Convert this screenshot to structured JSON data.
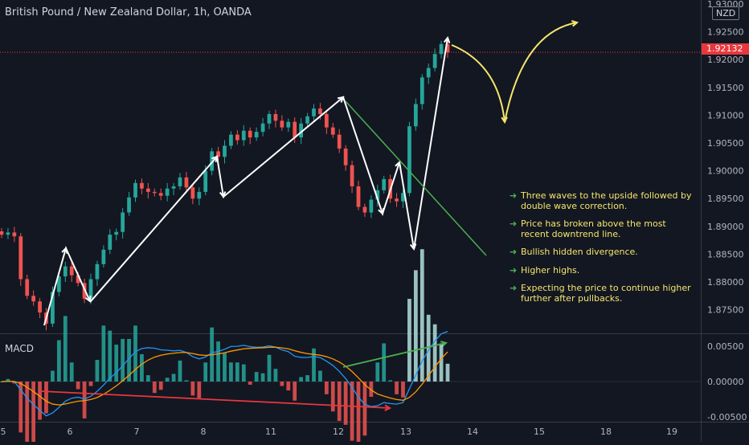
{
  "chart_data": [
    {
      "type": "line",
      "panel": "price",
      "title": "British Pound / New Zealand Dollar, 1h, OANDA",
      "currency": "NZD",
      "last_price": "1.92132",
      "y_ticks": [
        "1.93000",
        "1.92500",
        "1.92000",
        "1.91500",
        "1.91000",
        "1.90500",
        "1.90000",
        "1.89500",
        "1.89000",
        "1.88500",
        "1.88000",
        "1.87500"
      ],
      "ylim": [
        1.8715,
        1.9306
      ],
      "x_ticks": [
        "5",
        "6",
        "7",
        "8",
        "11",
        "12",
        "13",
        "14",
        "15",
        "18",
        "19"
      ],
      "series": [
        {
          "values": [
            1.8885,
            1.8889,
            1.8882,
            1.8805,
            1.8775,
            1.8765,
            1.8745,
            1.8725,
            1.8782,
            1.881,
            1.8828,
            1.8812,
            1.8798,
            1.877,
            1.8805,
            1.8832,
            1.8858,
            1.8885,
            1.889,
            1.8925,
            1.8952,
            1.8978,
            1.8968,
            1.8962,
            1.896,
            1.8955,
            1.8968,
            1.8972,
            1.8988,
            1.897,
            1.895,
            1.8962,
            1.9,
            1.9035,
            1.9025,
            1.9045,
            1.9065,
            1.9055,
            1.9072,
            1.906,
            1.907,
            1.9085,
            1.9102,
            1.909,
            1.9078,
            1.9088,
            1.906,
            1.9085,
            1.9098,
            1.9112,
            1.9102,
            1.9078,
            1.9065,
            1.904,
            1.901,
            1.8972,
            1.8935,
            1.8925,
            1.8948,
            1.8965,
            1.8985,
            1.895,
            1.8945,
            1.896,
            1.908,
            1.912,
            1.9168,
            1.9185,
            1.921,
            1.9228,
            1.9213
          ]
        }
      ],
      "annotations": [
        {
          "text": "Three waves to the upside followed by double wave correction."
        },
        {
          "text": "Price has broken above the most recent downtrend line."
        },
        {
          "text": "Bullish hidden divergence."
        },
        {
          "text": "Higher highs."
        },
        {
          "text": "Expecting the price to continue higher further after pullbacks."
        }
      ],
      "grid": false,
      "colors": {
        "up": "#26a69a",
        "down": "#ef5350",
        "wave": "#ffffff",
        "projection": "#f5e66b",
        "trendline": "#4caf50",
        "price_badge": "#e8383d"
      }
    },
    {
      "type": "bar",
      "panel": "macd",
      "title": "MACD",
      "y_ticks": [
        "0.00500",
        "0.00000",
        "-0.00500"
      ],
      "ylim": [
        -0.0052,
        0.0063
      ],
      "colors": {
        "macd": "#2196f3",
        "signal": "#ff9800",
        "hist_pos": "#26a69a",
        "hist_neg": "#ef5350",
        "divergence_up": "#4caf50",
        "divergence_down": "#e8383d"
      }
    }
  ],
  "notes": [
    {
      "arrow": "➜",
      "text": "Three waves to the upside followed by double wave correction."
    },
    {
      "arrow": "➜",
      "text": "Price has broken above the most recent downtrend line."
    },
    {
      "arrow": "➜",
      "text": "Bullish hidden divergence."
    },
    {
      "arrow": "➜",
      "text": "Higher highs."
    },
    {
      "arrow": "➜",
      "text": "Expecting the price to continue higher further after pullbacks."
    }
  ],
  "labels": {
    "title": "British Pound / New Zealand Dollar, 1h, OANDA",
    "currency": "NZD",
    "last_price": "1.92132",
    "macd": "MACD"
  }
}
